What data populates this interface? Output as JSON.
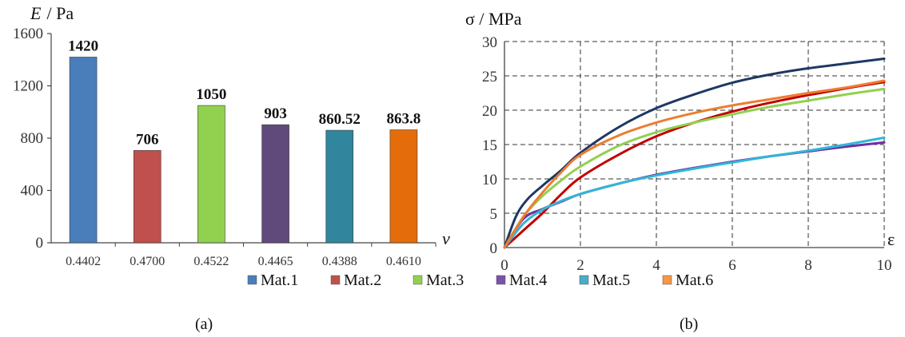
{
  "chart_data": [
    {
      "type": "bar",
      "panel": "(a)",
      "title": "",
      "ylabel_symbol": "E",
      "ylabel_unit": " / Pa",
      "xlabel": "ν",
      "categories": [
        "0.4402",
        "0.4700",
        "0.4522",
        "0.4465",
        "0.4388",
        "0.4610"
      ],
      "values": [
        1420,
        706,
        1050,
        903,
        860.52,
        863.8
      ],
      "value_labels": [
        "1420",
        "706",
        "1050",
        "903",
        "860.52",
        "863.8"
      ],
      "colors": [
        "#4a7ebb",
        "#c0504d",
        "#92d050",
        "#604a7b",
        "#31859c",
        "#e46c0a"
      ],
      "series_names": [
        "Mat.1",
        "Mat.2",
        "Mat.3",
        "Mat.4",
        "Mat.5",
        "Mat.6"
      ],
      "ylim": [
        0,
        1600
      ],
      "yticks": [
        "0",
        "400",
        "800",
        "1200",
        "1600"
      ],
      "grid": false
    },
    {
      "type": "line",
      "panel": "(b)",
      "ylabel": "σ / MPa",
      "xlabel": "ε",
      "xlim": [
        0,
        10
      ],
      "ylim": [
        0,
        30
      ],
      "xticks": [
        "0",
        "2",
        "4",
        "6",
        "8",
        "10"
      ],
      "yticks": [
        "0",
        "5",
        "10",
        "15",
        "20",
        "25",
        "30"
      ],
      "grid": true,
      "series": [
        {
          "name": "Mat.1",
          "color": "#1f3864",
          "x": [
            0,
            0.3,
            0.6,
            1,
            1.5,
            2,
            3,
            4,
            5,
            6,
            7,
            8,
            9,
            10
          ],
          "y": [
            0,
            4.5,
            7,
            9,
            11.3,
            13.8,
            17.5,
            20.3,
            22.3,
            24,
            25.2,
            26.1,
            26.8,
            27.5
          ]
        },
        {
          "name": "Mat.2",
          "color": "#c00000",
          "x": [
            0,
            0.5,
            1,
            1.5,
            2,
            3,
            4,
            5,
            6,
            7,
            8,
            9,
            10
          ],
          "y": [
            0,
            2.5,
            5,
            7.8,
            10.2,
            13.5,
            16.2,
            18.2,
            19.8,
            21.1,
            22.2,
            23.2,
            24.1
          ]
        },
        {
          "name": "Mat.3",
          "color": "#92d050",
          "x": [
            0,
            0.5,
            1,
            1.5,
            2,
            3,
            4,
            5,
            6,
            7,
            8,
            9,
            10
          ],
          "y": [
            0,
            4.5,
            7.5,
            9.8,
            11.8,
            14.8,
            16.8,
            18.2,
            19.4,
            20.5,
            21.4,
            22.3,
            23.1
          ]
        },
        {
          "name": "Mat.4",
          "color": "#7030a0",
          "x": [
            0,
            0.5,
            1,
            1.5,
            2,
            3,
            4,
            5,
            6,
            7,
            8,
            9,
            10
          ],
          "y": [
            0,
            4.2,
            5.6,
            6.7,
            7.8,
            9.3,
            10.6,
            11.6,
            12.5,
            13.3,
            14,
            14.7,
            15.3
          ]
        },
        {
          "name": "Mat.5",
          "color": "#31b6d8",
          "x": [
            0,
            0.5,
            1,
            1.5,
            2,
            3,
            4,
            5,
            6,
            7,
            8,
            9,
            10
          ],
          "y": [
            0,
            3.5,
            5.5,
            6.8,
            7.8,
            9.3,
            10.5,
            11.5,
            12.4,
            13.3,
            14.1,
            15,
            16
          ]
        },
        {
          "name": "Mat.6",
          "color": "#ed7d31",
          "x": [
            0,
            0.5,
            1,
            1.5,
            2,
            3,
            4,
            5,
            6,
            7,
            8,
            9,
            10
          ],
          "y": [
            0,
            4.5,
            8,
            11,
            13.5,
            16.3,
            18.2,
            19.6,
            20.7,
            21.6,
            22.5,
            23.3,
            24.3
          ]
        }
      ]
    }
  ],
  "legend": {
    "items": [
      {
        "label": "Mat.1",
        "color": "#4a7ebb"
      },
      {
        "label": "Mat.2",
        "color": "#c0504d"
      },
      {
        "label": "Mat.3",
        "color": "#92d050"
      },
      {
        "label": "Mat.4",
        "color": "#7b52ab"
      },
      {
        "label": "Mat.5",
        "color": "#4bacc6"
      },
      {
        "label": "Mat.6",
        "color": "#f79646"
      }
    ]
  },
  "captions": {
    "a": "(a)",
    "b": "(b)"
  }
}
